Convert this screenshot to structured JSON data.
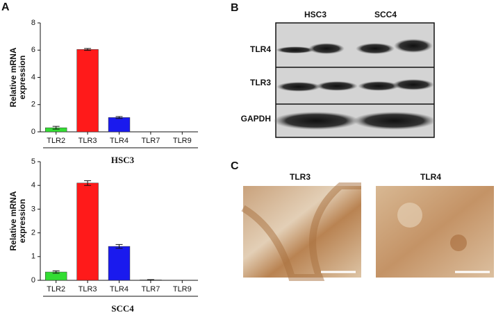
{
  "chart_data": [
    {
      "type": "bar",
      "panel": "A",
      "ylabel": [
        "Relative mRNA",
        "expression"
      ],
      "xlabel": "HSC3",
      "categories": [
        "TLR2",
        "TLR3",
        "TLR4",
        "TLR7",
        "TLR9"
      ],
      "values": [
        0.3,
        6.05,
        1.05,
        0,
        0
      ],
      "errors": [
        0.1,
        0.07,
        0.07,
        0,
        0
      ],
      "colors": [
        "#33dd33",
        "#ff1a1a",
        "#1a1aee",
        "#888888",
        "#888888"
      ],
      "ylim": [
        0,
        8
      ],
      "yticks": [
        0,
        2,
        4,
        6,
        8
      ]
    },
    {
      "type": "bar",
      "ylabel": [
        "Relative mRNA",
        "expression"
      ],
      "xlabel": "SCC4",
      "categories": [
        "TLR2",
        "TLR3",
        "TLR4",
        "TLR7",
        "TLR9"
      ],
      "values": [
        0.35,
        4.1,
        1.43,
        0.02,
        0
      ],
      "errors": [
        0.05,
        0.1,
        0.08,
        0.01,
        0
      ],
      "colors": [
        "#33dd33",
        "#ff1a1a",
        "#1a1aee",
        "#888888",
        "#888888"
      ],
      "ylim": [
        0,
        5
      ],
      "yticks": [
        0,
        1,
        2,
        3,
        4,
        5
      ]
    }
  ],
  "blot": {
    "panel": "B",
    "columns": [
      "HSC3",
      "SCC4"
    ],
    "rows": [
      "TLR4",
      "TLR3",
      "GAPDH"
    ]
  },
  "ihc": {
    "panel": "C",
    "labels": [
      "TLR3",
      "TLR4"
    ]
  }
}
